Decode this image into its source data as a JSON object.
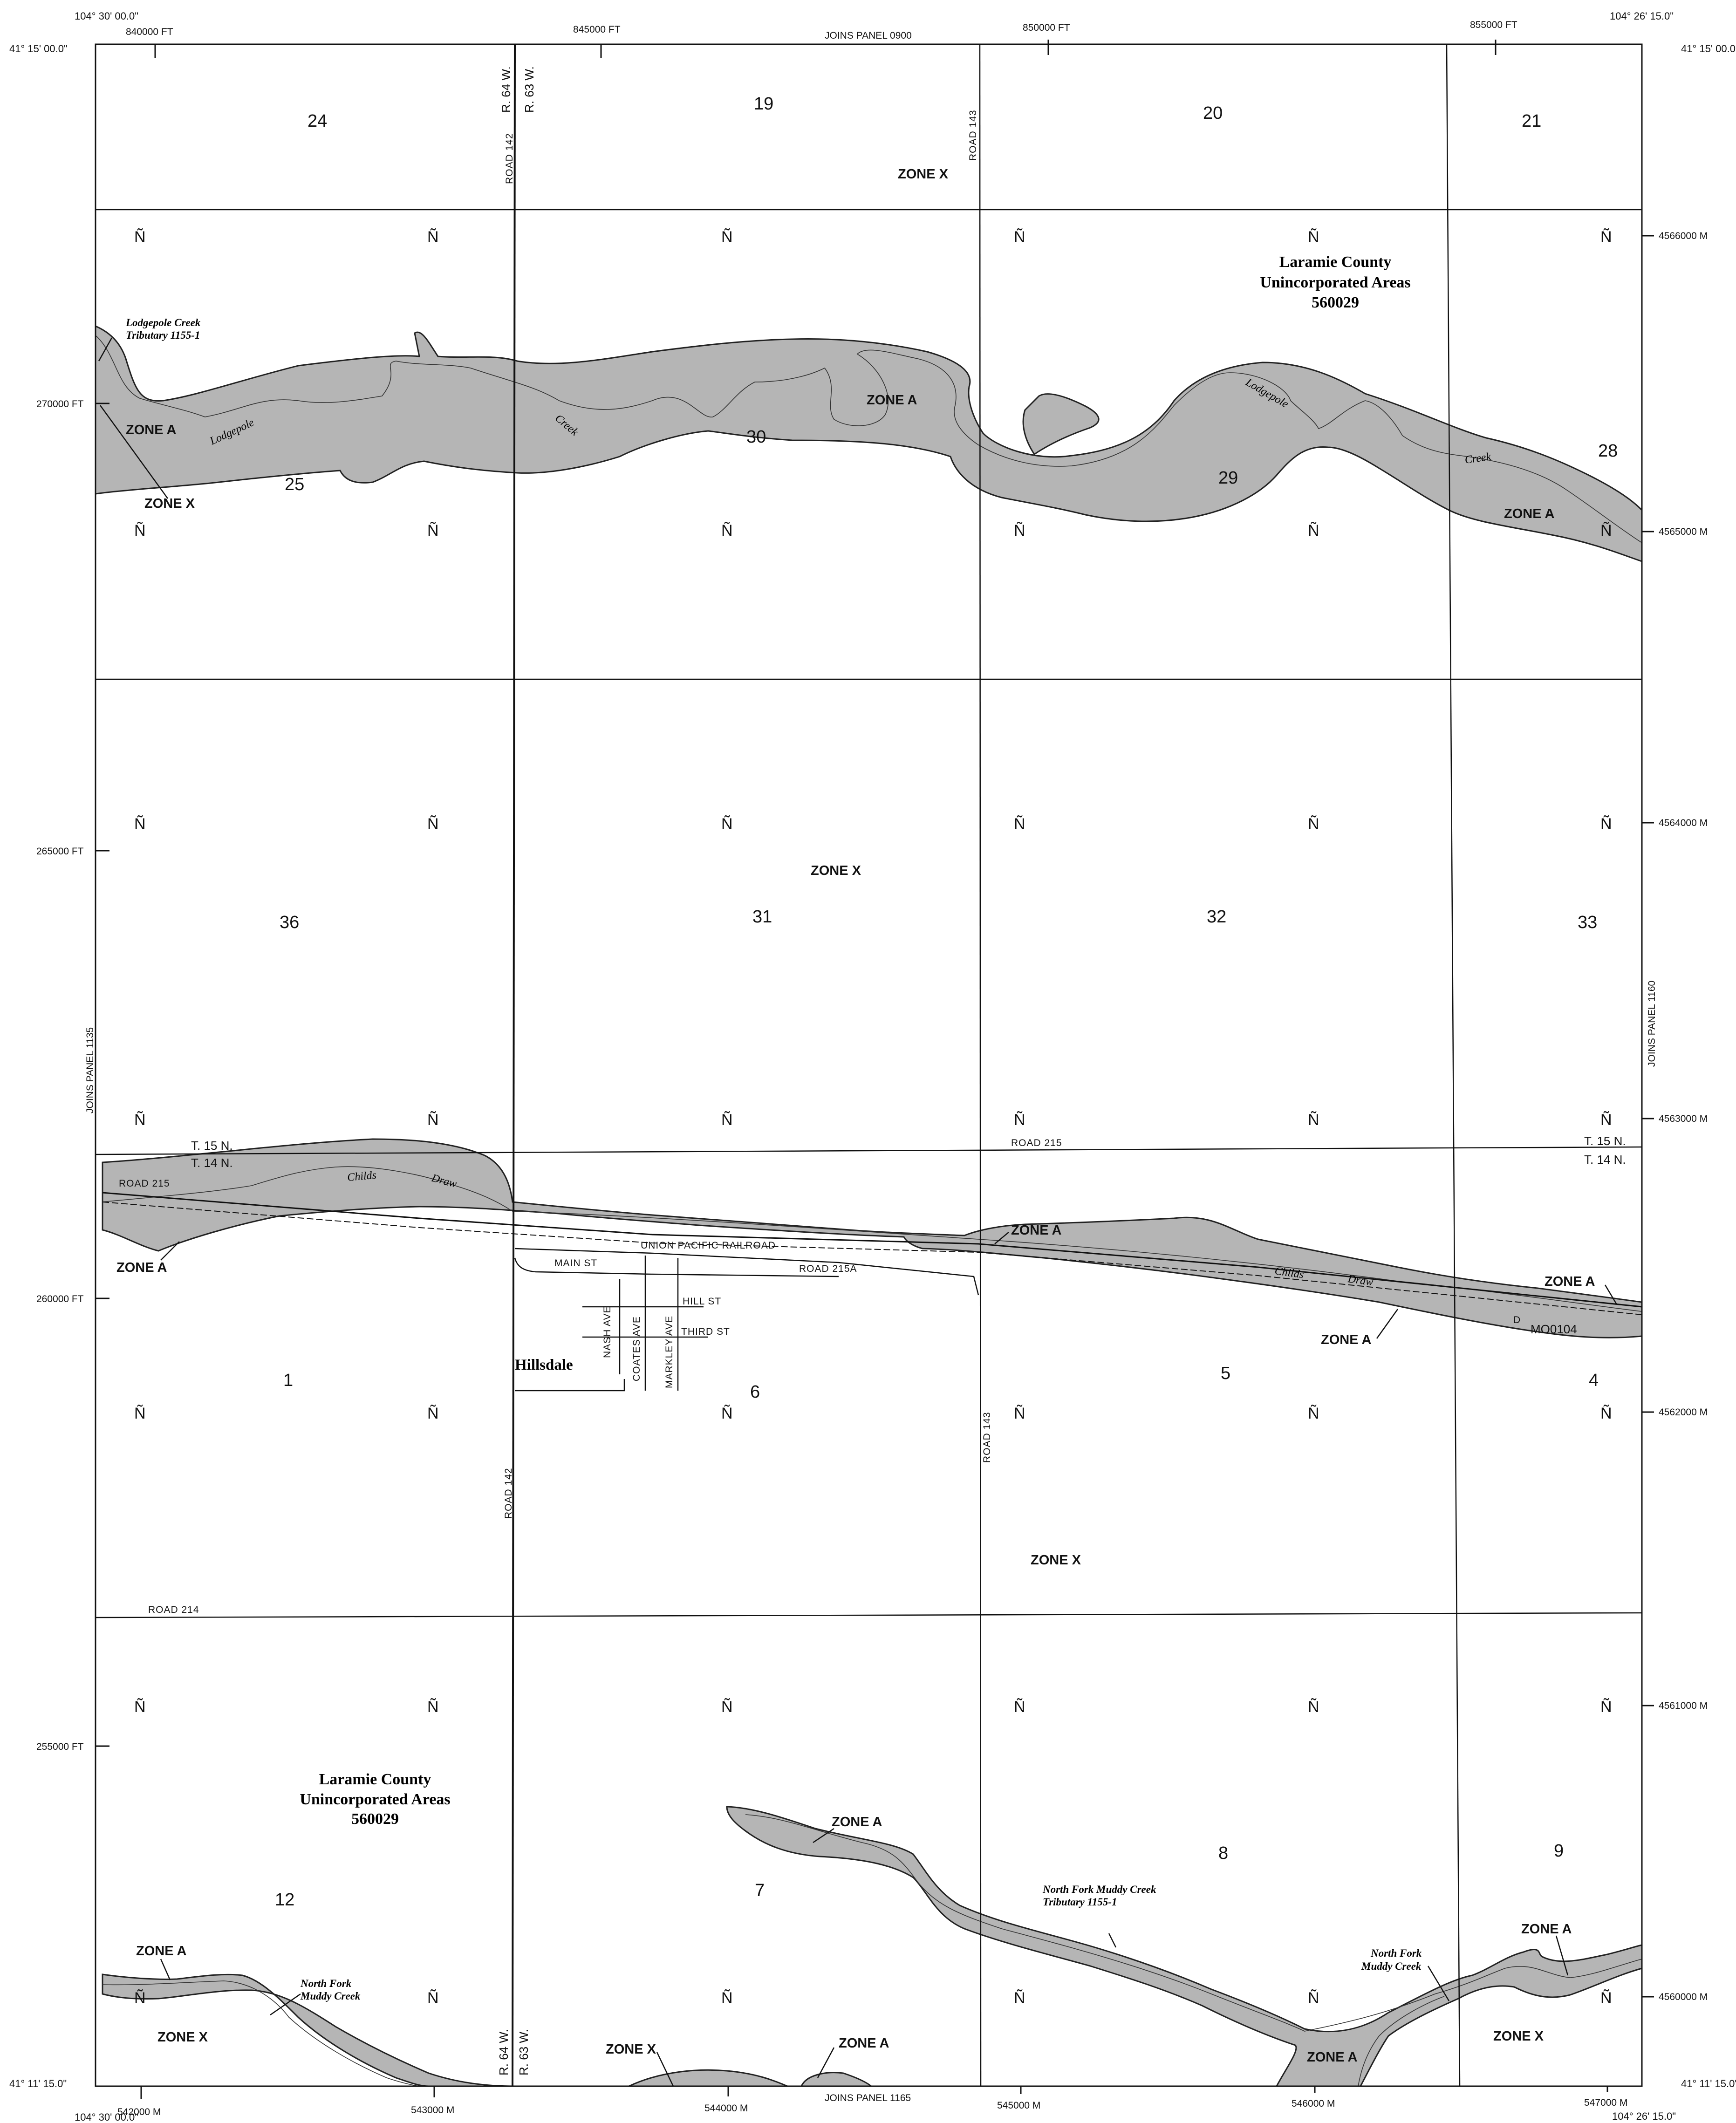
{
  "corners": {
    "top_left_lon": "104° 30' 00.0\"",
    "top_left_lat": "41° 15' 00.0\"",
    "top_right_lon": "104° 26' 15.0\"",
    "top_right_lat": "41° 15' 00.0\"",
    "bottom_left_lat": "41° 11' 15.0\"",
    "bottom_left_lon": "104° 30' 00.0\"",
    "bottom_right_lat": "41° 11' 15.0\"",
    "bottom_right_lon": "104° 26' 15.0\""
  },
  "joins": {
    "top": "JOINS PANEL 0900",
    "bottom": "JOINS PANEL 1165",
    "left": "JOINS PANEL 1135",
    "right": "JOINS PANEL 1160"
  },
  "grid_ft_top": [
    "840000 FT",
    "845000 FT",
    "850000 FT",
    "855000 FT"
  ],
  "grid_ft_left": [
    "270000 FT",
    "265000 FT",
    "260000 FT",
    "255000 FT"
  ],
  "grid_m_right": [
    "4566000 M",
    "4565000 M",
    "4564000 M",
    "4563000 M",
    "4562000 M",
    "4561000 M",
    "4560000 M"
  ],
  "grid_m_bottom": [
    "542000 M",
    "543000 M",
    "544000 M",
    "545000 M",
    "546000 M",
    "547000 M"
  ],
  "sections": [
    "24",
    "19",
    "20",
    "21",
    "25",
    "30",
    "29",
    "28",
    "36",
    "31",
    "32",
    "33",
    "1",
    "6",
    "5",
    "4",
    "12",
    "7",
    "8",
    "9"
  ],
  "zones": {
    "zone_x": "ZONE X",
    "zone_a": "ZONE A"
  },
  "community": {
    "line1": "Laramie County",
    "line2": "Unincorporated Areas",
    "line3": "560029"
  },
  "town": "Hillsdale",
  "roads": {
    "road_142": "ROAD 142",
    "road_143": "ROAD 143",
    "road_215": "ROAD 215",
    "road_215a": "ROAD 215A",
    "road_214": "ROAD 214",
    "railroad": "UNION PACIFIC RAILROAD",
    "main_st": "MAIN ST",
    "hill_st": "HILL ST",
    "third_st": "THIRD ST",
    "nash_ave": "NASH AVE",
    "coates_ave": "COATES AVE",
    "markley_ave": "MARKLEY AVE"
  },
  "township": {
    "t15": "T. 15 N.",
    "t14": "T. 14 N.",
    "r64": "R. 64 W.",
    "r63": "R. 63 W."
  },
  "streams": {
    "lodgepole": "Lodgepole",
    "creek": "Creek",
    "childs": "Childs",
    "draw": "Draw",
    "lp_trib_1": "Lodgepole Creek",
    "lp_trib_2": "Tributary 1155-1",
    "nfm_1": "North Fork",
    "nfm_2": "Muddy Creek",
    "nfm_trib_1": "North Fork Muddy Creek",
    "nfm_trib_2": "Tributary 1155-1"
  },
  "bench_mark": {
    "letter": "D",
    "id": "MO0104"
  },
  "section_corner_symbol": "Ñ"
}
